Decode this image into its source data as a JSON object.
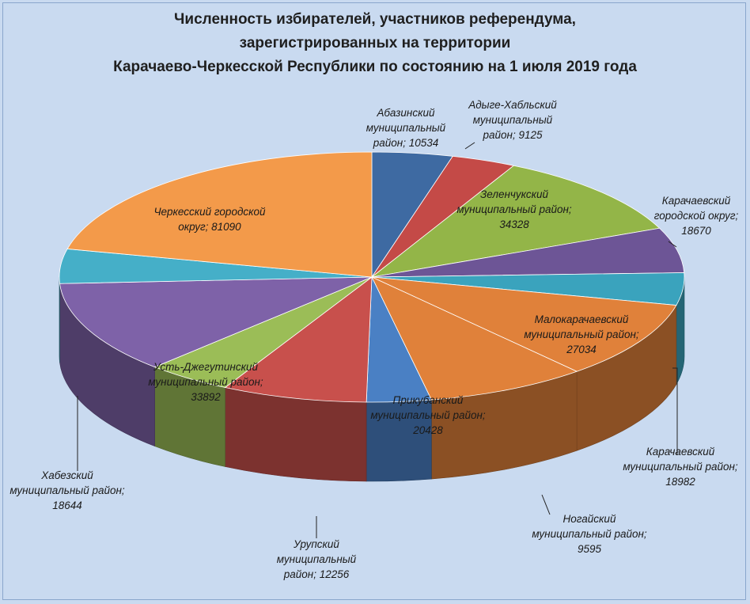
{
  "chart_data": {
    "type": "pie",
    "title_lines": [
      "Численность избирателей, участников референдума,",
      "зарегистрированных на территории",
      "Карачаево-Черкесской Республики по состоянию на 1 июля 2019 года"
    ],
    "slices": [
      {
        "label_lines": [
          "Абазинский",
          "муниципальный",
          "район; 10534"
        ],
        "value": 10534,
        "color": "#3e6aa2"
      },
      {
        "label_lines": [
          "Адыге-Хабльский",
          "муниципальный",
          "район; 9125"
        ],
        "value": 9125,
        "color": "#c44a47"
      },
      {
        "label_lines": [
          "Зеленчукский",
          "муниципальный район;",
          "34328"
        ],
        "value": 34328,
        "color": "#93b548"
      },
      {
        "label_lines": [
          "Карачаевский",
          "городской округ;",
          "18670"
        ],
        "value": 18670,
        "color": "#6d5596"
      },
      {
        "label_lines": [],
        "value": 0,
        "color": "#3aa3bd"
      },
      {
        "label_lines": [
          "Малокарачаевский",
          "муниципальный район;",
          "27034"
        ],
        "value": 27034,
        "color": "#e0813a"
      },
      {
        "label_lines": [
          "Карачаевский",
          "муниципальный район;",
          "18982"
        ],
        "value": 18982,
        "color": "#e0813a"
      },
      {
        "label_lines": [
          "Ногайский",
          "муниципальный район;",
          "9595"
        ],
        "value": 9595,
        "color": "#4a80c4"
      },
      {
        "label_lines": [
          "Прикубанский",
          "муниципальный район;",
          "20428"
        ],
        "value": 20428,
        "color": "#c8504c"
      },
      {
        "label_lines": [
          "Урупский",
          "муниципальный",
          "район; 12256"
        ],
        "value": 12256,
        "color": "#9bbd57"
      },
      {
        "label_lines": [
          "Усть-Джегутинский",
          "муниципальный район;",
          "33892"
        ],
        "value": 33892,
        "color": "#7e62a8"
      },
      {
        "label_lines": [
          "Хабезский",
          "муниципальный район;",
          "18644"
        ],
        "value": 18644,
        "color": "#45afc8"
      },
      {
        "label_lines": [
          "Черкесский городской",
          "округ; 81090"
        ],
        "value": 81090,
        "color": "#f39a4a"
      }
    ]
  }
}
